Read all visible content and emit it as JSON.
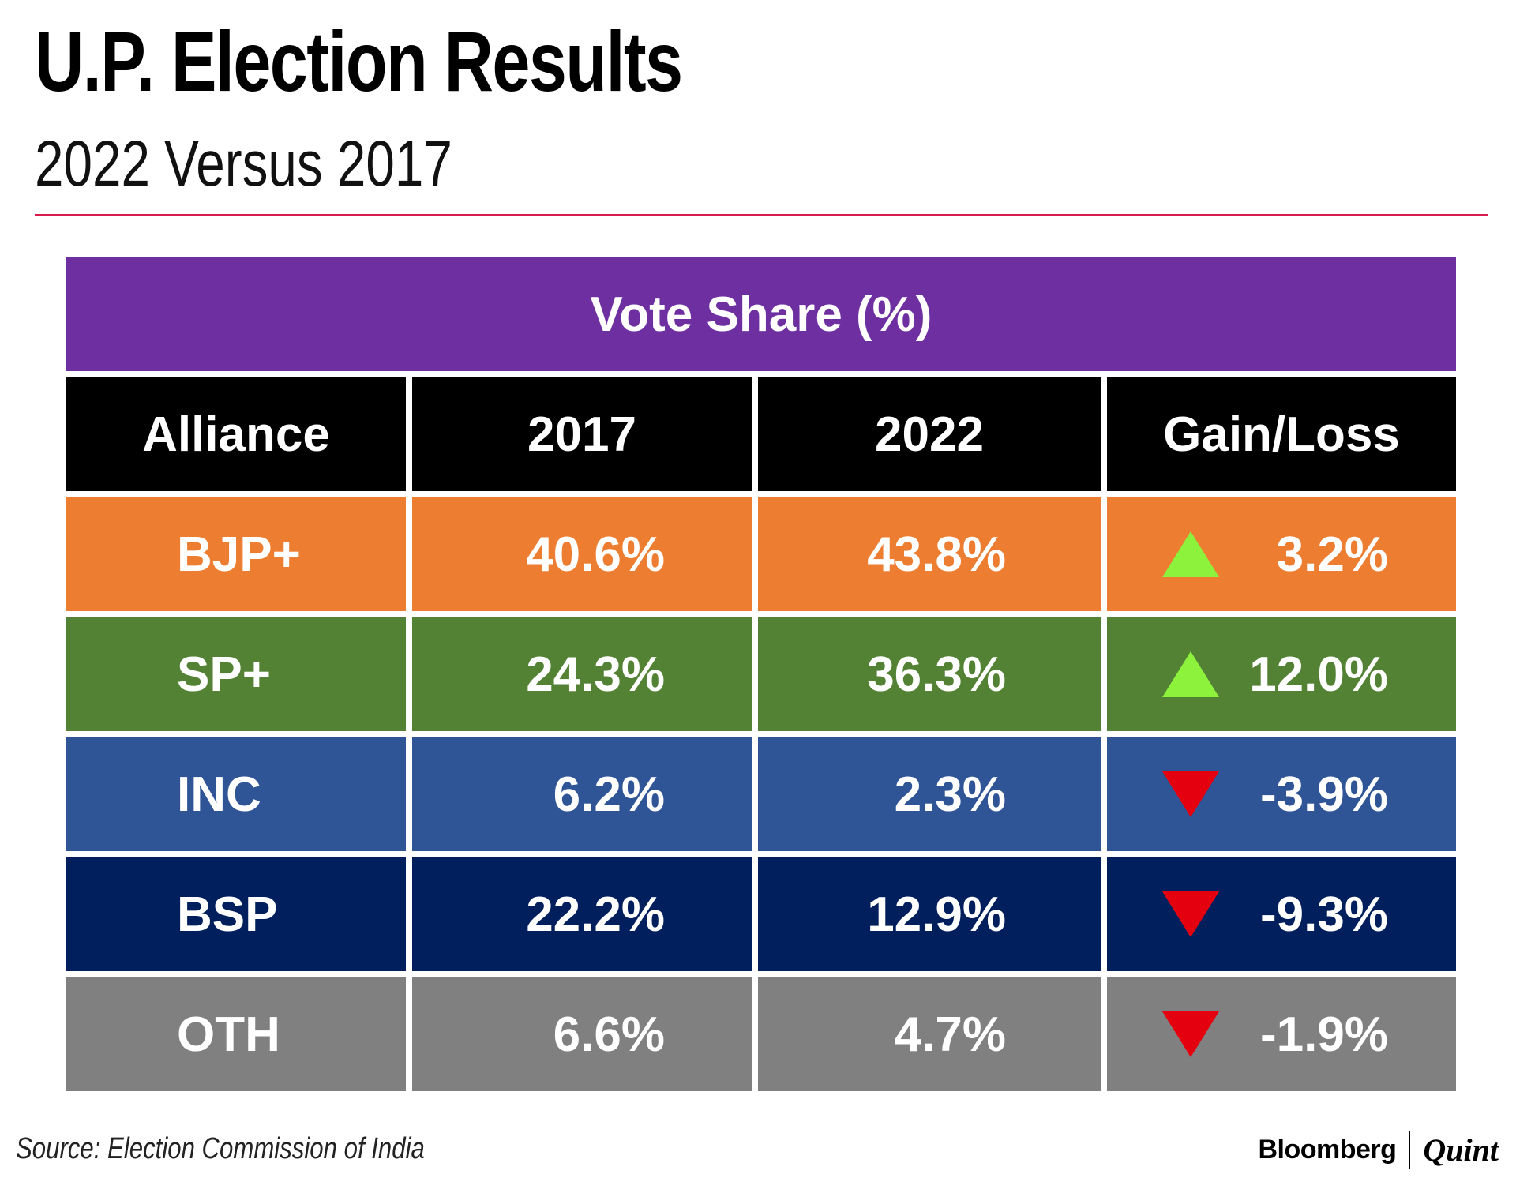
{
  "title": "U.P. Election Results",
  "subtitle": "2022 Versus 2017",
  "chart_data": {
    "type": "table",
    "header": "Vote Share (%)",
    "columns": [
      "Alliance",
      "2017",
      "2022",
      "Gain/Loss"
    ],
    "rows": [
      {
        "alliance": "BJP+",
        "v2017": "40.6%",
        "v2022": "43.8%",
        "change": "3.2%",
        "direction": "up",
        "color": "#ed7d31"
      },
      {
        "alliance": "SP+",
        "v2017": "24.3%",
        "v2022": "36.3%",
        "change": "12.0%",
        "direction": "up",
        "color": "#548235"
      },
      {
        "alliance": "INC",
        "v2017": "6.2%",
        "v2022": "2.3%",
        "change": "-3.9%",
        "direction": "down",
        "color": "#2f5597"
      },
      {
        "alliance": "BSP",
        "v2017": "22.2%",
        "v2022": "12.9%",
        "change": "-9.3%",
        "direction": "down",
        "color": "#001f5c"
      },
      {
        "alliance": "OTH",
        "v2017": "6.6%",
        "v2022": "4.7%",
        "change": "-1.9%",
        "direction": "down",
        "color": "#808080"
      }
    ],
    "header_color": "#6e2fa0",
    "column_header_color": "#000000",
    "gain_icon_color": "#8cf23c",
    "loss_icon_color": "#e4000f"
  },
  "source": "Source: Election Commission of India",
  "brand": {
    "left": "Bloomberg",
    "right": "Quint"
  }
}
